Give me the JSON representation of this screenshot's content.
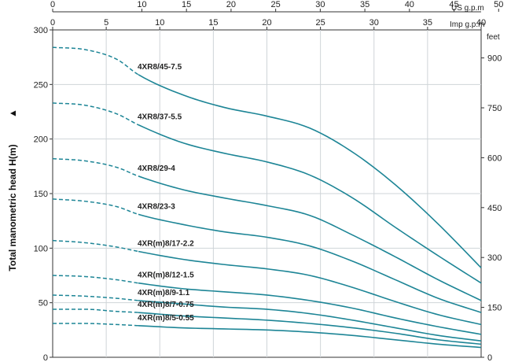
{
  "chart_data": {
    "type": "line",
    "title": "",
    "xlabel_top": "US g.p.m",
    "xlabel_bottom": "Imp g.p.m",
    "ylabel": "Total manometric head H(m)",
    "ylabel_arrow": "▲",
    "y_right_label": "feet",
    "xlim": [
      0,
      40
    ],
    "ylim": [
      0,
      300
    ],
    "imp_ticks": [
      0,
      5,
      10,
      15,
      20,
      25,
      30,
      35,
      40
    ],
    "us_ticks": [
      0,
      10,
      15,
      20,
      25,
      30,
      35,
      40,
      45,
      50
    ],
    "y_ticks": [
      0,
      50,
      100,
      150,
      200,
      250,
      300
    ],
    "feet_ticks": [
      0,
      150,
      300,
      450,
      600,
      750,
      900
    ],
    "dashed_until_x": 8,
    "series": [
      {
        "name": "4XR8/45-7.5",
        "x": [
          0,
          3,
          6,
          8,
          12,
          16,
          20,
          24,
          28,
          32,
          36,
          40
        ],
        "y": [
          284,
          282,
          273,
          259,
          241,
          229,
          221,
          210,
          188,
          158,
          122,
          82
        ]
      },
      {
        "name": "4XR8/37-5.5",
        "x": [
          0,
          3,
          6,
          8,
          12,
          16,
          20,
          24,
          28,
          32,
          36,
          40
        ],
        "y": [
          233,
          231,
          223,
          213,
          197,
          187,
          179,
          167,
          146,
          119,
          93,
          68
        ]
      },
      {
        "name": "4XR8/29-4",
        "x": [
          0,
          3,
          6,
          8,
          12,
          16,
          20,
          24,
          28,
          32,
          36,
          40
        ],
        "y": [
          182,
          180,
          174,
          166,
          154,
          146,
          139,
          130,
          112,
          92,
          71,
          52
        ]
      },
      {
        "name": "4XR8/23-3",
        "x": [
          0,
          3,
          6,
          8,
          12,
          16,
          20,
          24,
          28,
          32,
          36,
          40
        ],
        "y": [
          145,
          143,
          138,
          131,
          122,
          115,
          110,
          102,
          88,
          71,
          54,
          41
        ]
      },
      {
        "name": "4XR(m)8/17-2.2",
        "x": [
          0,
          3,
          6,
          8,
          12,
          16,
          20,
          24,
          28,
          32,
          36,
          40
        ],
        "y": [
          107,
          105,
          101,
          97,
          90,
          85,
          81,
          75,
          64,
          51,
          39,
          30
        ]
      },
      {
        "name": "4XR(m)8/12-1.5",
        "x": [
          0,
          3,
          6,
          8,
          12,
          16,
          20,
          24,
          28,
          32,
          36,
          40
        ],
        "y": [
          75,
          74,
          71,
          68,
          63,
          60,
          57,
          52,
          45,
          36,
          28,
          21
        ]
      },
      {
        "name": "4XR(m)8/9-1.1",
        "x": [
          0,
          3,
          6,
          8,
          12,
          16,
          20,
          24,
          28,
          32,
          36,
          40
        ],
        "y": [
          57,
          56,
          54,
          52,
          49,
          46,
          44,
          40,
          34,
          27,
          20,
          15
        ]
      },
      {
        "name": "4XR(m)8/7-0.75",
        "x": [
          0,
          3,
          6,
          8,
          12,
          16,
          20,
          24,
          28,
          32,
          36,
          40
        ],
        "y": [
          44,
          44,
          42,
          41,
          38,
          36,
          34,
          31,
          27,
          22,
          16,
          12
        ]
      },
      {
        "name": "4XR(m)8/5-0.55",
        "x": [
          0,
          3,
          6,
          8,
          12,
          16,
          20,
          24,
          28,
          32,
          36,
          40
        ],
        "y": [
          31,
          31,
          30,
          29,
          27,
          26,
          25,
          23,
          20,
          16,
          12,
          9
        ]
      }
    ],
    "colors": {
      "curve": "#1d8596",
      "grid": "#cfd4d8",
      "axis": "#333333"
    }
  }
}
